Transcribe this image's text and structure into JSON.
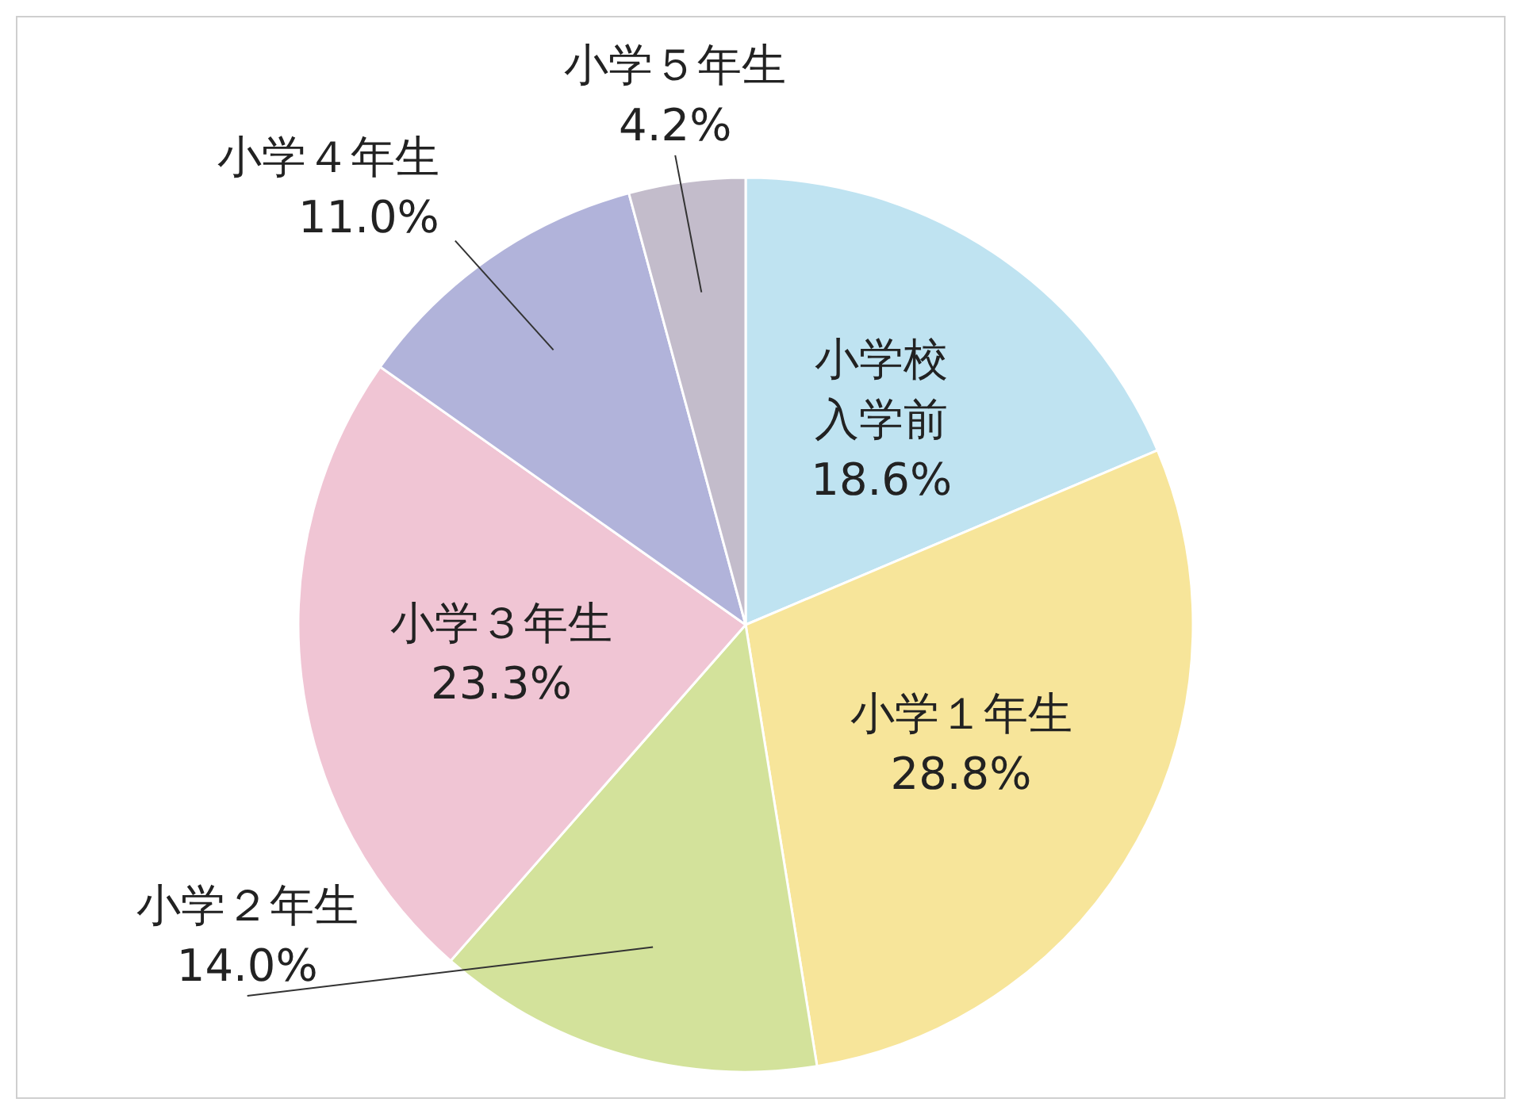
{
  "chart_data": {
    "type": "pie",
    "categories": [
      "小学校入学前",
      "小学１年生",
      "小学２年生",
      "小学３年生",
      "小学４年生",
      "小学５年生"
    ],
    "values": [
      18.6,
      28.8,
      14.0,
      23.3,
      11.0,
      4.2
    ],
    "value_labels": [
      "18.6%",
      "28.8%",
      "14.0%",
      "23.3%",
      "11.0%",
      "4.2%"
    ],
    "colors": [
      "#bfe3f1",
      "#f7e59a",
      "#d3e29b",
      "#f0c5d4",
      "#b1b3da",
      "#c3bccb"
    ]
  }
}
